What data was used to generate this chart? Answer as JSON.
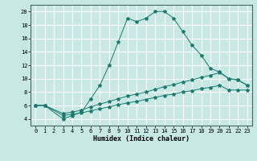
{
  "xlabel": "Humidex (Indice chaleur)",
  "bg_color": "#c8e8e4",
  "grid_color": "#ffffff",
  "line_color": "#1a7a6e",
  "xlim": [
    -0.5,
    23.5
  ],
  "ylim": [
    3,
    21
  ],
  "xticks": [
    0,
    1,
    2,
    3,
    4,
    5,
    6,
    7,
    8,
    9,
    10,
    11,
    12,
    13,
    14,
    15,
    16,
    17,
    18,
    19,
    20,
    21,
    22,
    23
  ],
  "yticks": [
    4,
    6,
    8,
    10,
    12,
    14,
    16,
    18,
    20
  ],
  "line1_x": [
    0,
    1,
    3,
    4,
    5,
    6,
    7,
    8,
    9,
    10,
    11,
    12,
    13,
    14,
    15,
    16,
    17,
    18,
    19,
    20,
    21,
    22,
    23
  ],
  "line1_y": [
    6,
    6,
    4,
    4.5,
    5,
    7,
    9,
    12,
    15.5,
    19,
    18.5,
    19,
    20,
    20,
    19,
    17,
    15,
    13.5,
    11.5,
    11,
    10,
    9.8,
    9
  ],
  "line2_x": [
    0,
    1,
    3,
    4,
    5,
    6,
    7,
    8,
    9,
    10,
    11,
    12,
    13,
    14,
    15,
    16,
    17,
    18,
    19,
    20,
    21,
    22,
    23
  ],
  "line2_y": [
    6,
    6,
    4.8,
    5.0,
    5.3,
    5.8,
    6.2,
    6.6,
    7.0,
    7.4,
    7.7,
    8.0,
    8.4,
    8.8,
    9.1,
    9.5,
    9.8,
    10.2,
    10.5,
    10.9,
    10.0,
    9.8,
    9.0
  ],
  "line3_x": [
    0,
    1,
    3,
    4,
    5,
    6,
    7,
    8,
    9,
    10,
    11,
    12,
    13,
    14,
    15,
    16,
    17,
    18,
    19,
    20,
    21,
    22,
    23
  ],
  "line3_y": [
    6,
    6,
    4.5,
    4.7,
    4.9,
    5.2,
    5.5,
    5.8,
    6.1,
    6.4,
    6.6,
    6.9,
    7.2,
    7.5,
    7.7,
    8.0,
    8.2,
    8.5,
    8.7,
    9.0,
    8.3,
    8.3,
    8.3
  ]
}
